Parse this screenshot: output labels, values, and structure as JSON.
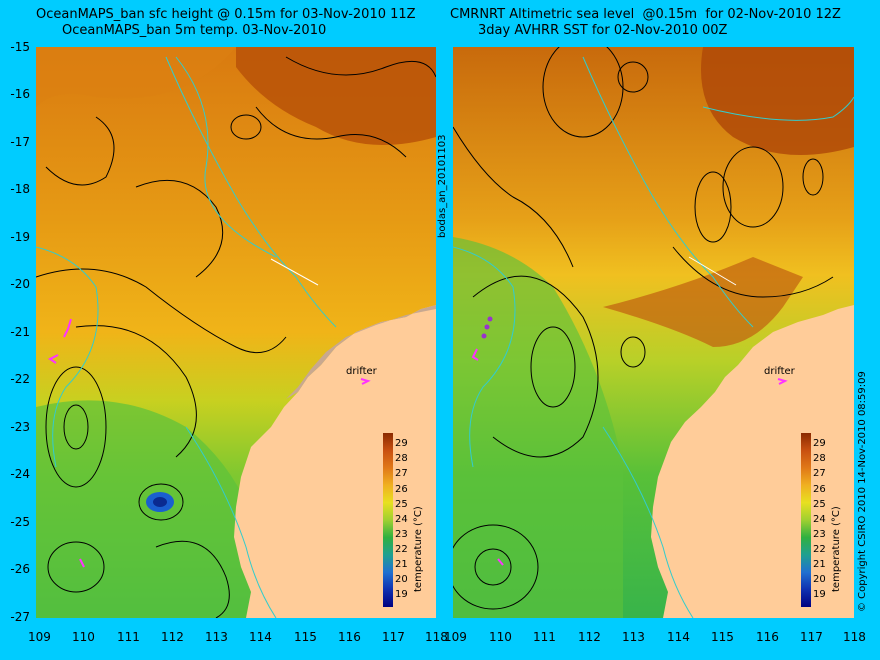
{
  "left_panel": {
    "title_line1": "OceanMAPS_ban sfc height @ 0.15m for 03-Nov-2010 11Z",
    "title_line2": "OceanMAPS_ban 5m temp. 03-Nov-2010",
    "drifter_label": "drifter",
    "colorbar_label": "temperature (°C)"
  },
  "right_panel": {
    "title_line1": "CMRNRT Altimetric sea level  @0.15m  for 02-Nov-2010 12Z",
    "title_line2": "3day AVHRR SST for 02-Nov-2010 00Z",
    "drifter_label": "drifter",
    "colorbar_label": "temperature (°C)"
  },
  "middle_vertical_label": "bodas_an_20101103",
  "right_vertical_label": "© Copyright CSIRO 2010   14-Nov-2010 08:59:09",
  "axes": {
    "x_ticks": [
      "109",
      "110",
      "111",
      "112",
      "113",
      "114",
      "115",
      "116",
      "117",
      "118"
    ],
    "y_ticks": [
      "-15",
      "-16",
      "-17",
      "-18",
      "-19",
      "-20",
      "-21",
      "-22",
      "-23",
      "-24",
      "-25",
      "-26",
      "-27"
    ],
    "lon_range": [
      109,
      118
    ],
    "lat_range": [
      -27,
      -15
    ]
  },
  "colorbar": {
    "ticks": [
      "29",
      "28",
      "27",
      "26",
      "25",
      "24",
      "23",
      "22",
      "21",
      "20",
      "19"
    ],
    "range": [
      18.5,
      29.5
    ]
  },
  "colors": {
    "background": "#00ccff",
    "land": "#ffcc99",
    "contour": "#000000",
    "isobath": "#33cccc",
    "drifter": "#ff33ff"
  }
}
